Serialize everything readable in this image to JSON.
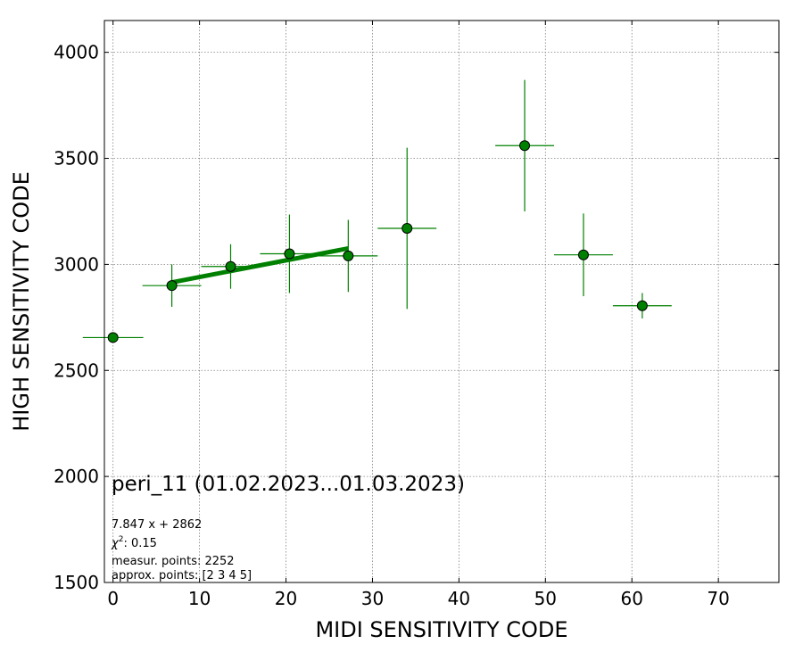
{
  "chart_data": {
    "type": "scatter",
    "xlabel": "MIDI SENSITIVITY CODE",
    "ylabel": "HIGH SENSITIVITY CODE",
    "xlim": [
      -1,
      77
    ],
    "ylim": [
      1500,
      4150
    ],
    "xticks": [
      0,
      10,
      20,
      30,
      40,
      50,
      60,
      70
    ],
    "yticks": [
      1500,
      2000,
      2500,
      3000,
      3500,
      4000
    ],
    "grid": true,
    "colors": {
      "marker": "#008000",
      "fit": "#008000",
      "grid": "#808080"
    },
    "series": [
      {
        "values": [
          {
            "x": 0.0,
            "y": 2655,
            "xerr": 3.5,
            "yerr": 0
          },
          {
            "x": 6.8,
            "y": 2900,
            "xerr": 3.4,
            "yerr": 100
          },
          {
            "x": 13.6,
            "y": 2990,
            "xerr": 3.4,
            "yerr": 105
          },
          {
            "x": 20.4,
            "y": 3050,
            "xerr": 3.4,
            "yerr": 185
          },
          {
            "x": 27.2,
            "y": 3040,
            "xerr": 3.4,
            "yerr": 170
          },
          {
            "x": 34.0,
            "y": 3170,
            "xerr": 3.4,
            "yerr": 380
          },
          {
            "x": 47.6,
            "y": 3560,
            "xerr": 3.4,
            "yerr": 310
          },
          {
            "x": 54.4,
            "y": 3045,
            "xerr": 3.4,
            "yerr": 195
          },
          {
            "x": 61.2,
            "y": 2805,
            "xerr": 3.4,
            "yerr": 60
          }
        ]
      }
    ],
    "fit": {
      "slope": 7.847,
      "intercept": 2862,
      "x_range": [
        6.8,
        27.2
      ]
    },
    "annotations": {
      "title": "peri_11 (01.02.2023...01.03.2023)",
      "equation": "7.847 x + 2862",
      "chi2_symbol": "χ",
      "chi2_power": "2",
      "chi2_value": ": 0.15",
      "measur": "measur. points: 2252",
      "approx": "approx. points: [2 3 4 5]"
    }
  }
}
